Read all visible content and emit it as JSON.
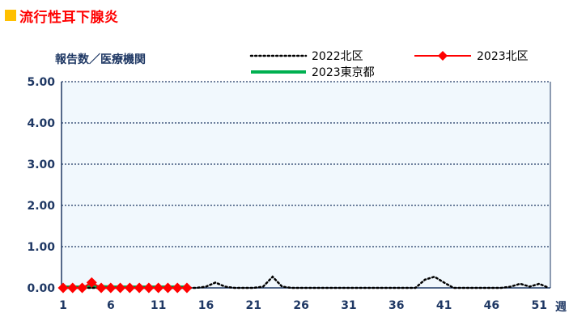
{
  "title": {
    "text": "流行性耳下腺炎",
    "marker_color": "#ffc000",
    "text_color": "#ff0000"
  },
  "chart_data": {
    "type": "line",
    "ylabel": "報告数／医療機関",
    "xlabel": "週",
    "ylim": [
      0,
      5
    ],
    "yticks": [
      "0.00",
      "1.00",
      "2.00",
      "3.00",
      "4.00",
      "5.00"
    ],
    "xticks": [
      "1",
      "6",
      "11",
      "16",
      "21",
      "26",
      "31",
      "36",
      "41",
      "46",
      "51"
    ],
    "grid": true,
    "plot_background": "#f1f8fd",
    "series": [
      {
        "name": "2022北区",
        "style": "dotted",
        "color": "#000000",
        "x": [
          1,
          2,
          3,
          4,
          5,
          6,
          7,
          8,
          9,
          10,
          11,
          12,
          13,
          14,
          15,
          16,
          17,
          18,
          19,
          20,
          21,
          22,
          23,
          24,
          25,
          26,
          27,
          28,
          29,
          30,
          31,
          32,
          33,
          34,
          35,
          36,
          37,
          38,
          39,
          40,
          41,
          42,
          43,
          44,
          45,
          46,
          47,
          48,
          49,
          50,
          51,
          52
        ],
        "values": [
          0,
          0,
          0,
          0,
          0,
          0,
          0,
          0,
          0,
          0,
          0,
          0,
          0,
          0,
          0,
          0.03,
          0.13,
          0.03,
          0,
          0,
          0,
          0.03,
          0.27,
          0.03,
          0,
          0,
          0,
          0,
          0,
          0,
          0,
          0,
          0,
          0,
          0,
          0,
          0,
          0,
          0.2,
          0.27,
          0.13,
          0,
          0,
          0,
          0,
          0,
          0,
          0.03,
          0.1,
          0.03,
          0.1,
          0
        ]
      },
      {
        "name": "2023北区",
        "style": "line-diamond",
        "color": "#ff0000",
        "x": [
          1,
          2,
          3,
          4,
          5,
          6,
          7,
          8,
          9,
          10,
          11,
          12,
          13,
          14
        ],
        "values": [
          0,
          0,
          0,
          0.13,
          0,
          0,
          0,
          0,
          0,
          0,
          0,
          0,
          0,
          0
        ]
      },
      {
        "name": "2023東京都",
        "style": "thick-line",
        "color": "#00b050",
        "x": [
          1,
          2,
          3,
          4,
          5,
          6,
          7,
          8,
          9,
          10,
          11,
          12,
          13,
          14
        ],
        "values": [
          0.02,
          0.02,
          0.02,
          0.03,
          0.03,
          0.02,
          0.02,
          0.02,
          0.02,
          0.02,
          0.02,
          0.02,
          0.02,
          0.02
        ]
      }
    ]
  }
}
